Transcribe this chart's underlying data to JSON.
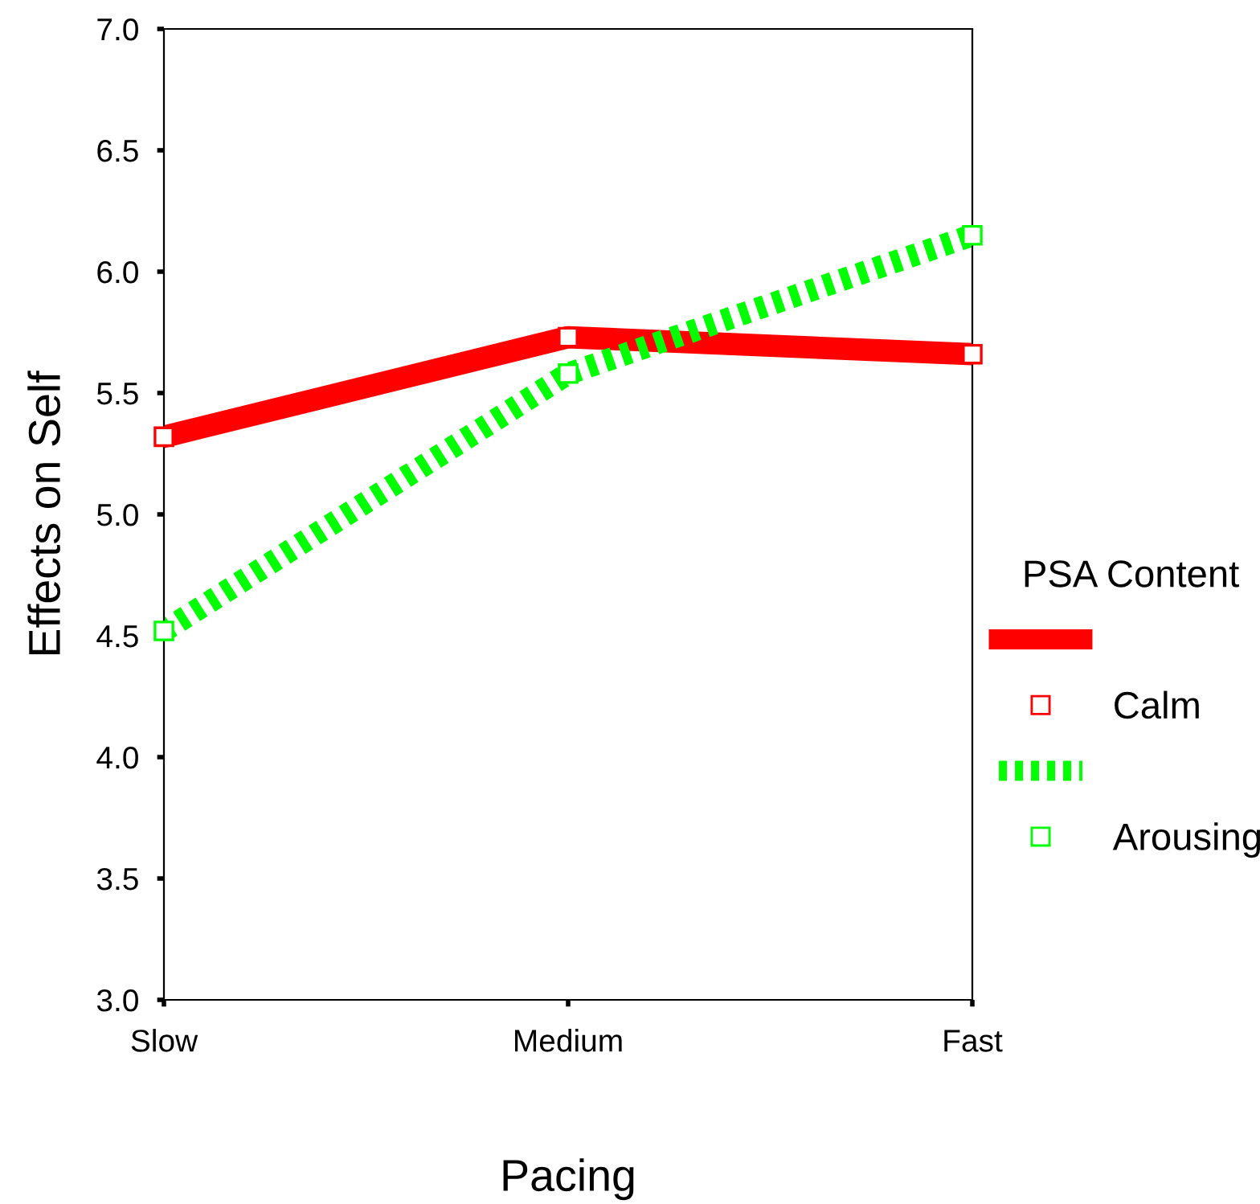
{
  "chart_data": {
    "type": "line",
    "xlabel": "Pacing",
    "ylabel": "Effects on Self",
    "legend_title": "PSA Content",
    "categories": [
      "Slow",
      "Medium",
      "Fast"
    ],
    "series": [
      {
        "name": "Calm",
        "color": "#ff0000",
        "values": [
          5.32,
          5.73,
          5.66
        ],
        "line_style": "solid"
      },
      {
        "name": "Arousing",
        "color": "#00ff00",
        "values": [
          4.52,
          5.58,
          6.15
        ],
        "line_style": "dotted"
      }
    ],
    "ylim": [
      3.0,
      7.0
    ],
    "yticks": [
      {
        "value": 3.0,
        "label": "3.0"
      },
      {
        "value": 3.5,
        "label": "3.5"
      },
      {
        "value": 4.0,
        "label": "4.0"
      },
      {
        "value": 4.5,
        "label": "4.5"
      },
      {
        "value": 5.0,
        "label": "5.0"
      },
      {
        "value": 5.5,
        "label": "5.5"
      },
      {
        "value": 6.0,
        "label": "6.0"
      },
      {
        "value": 6.5,
        "label": "6.5"
      },
      {
        "value": 7.0,
        "label": "7.0"
      }
    ],
    "marker": "square",
    "grid": false,
    "legend": "right"
  }
}
